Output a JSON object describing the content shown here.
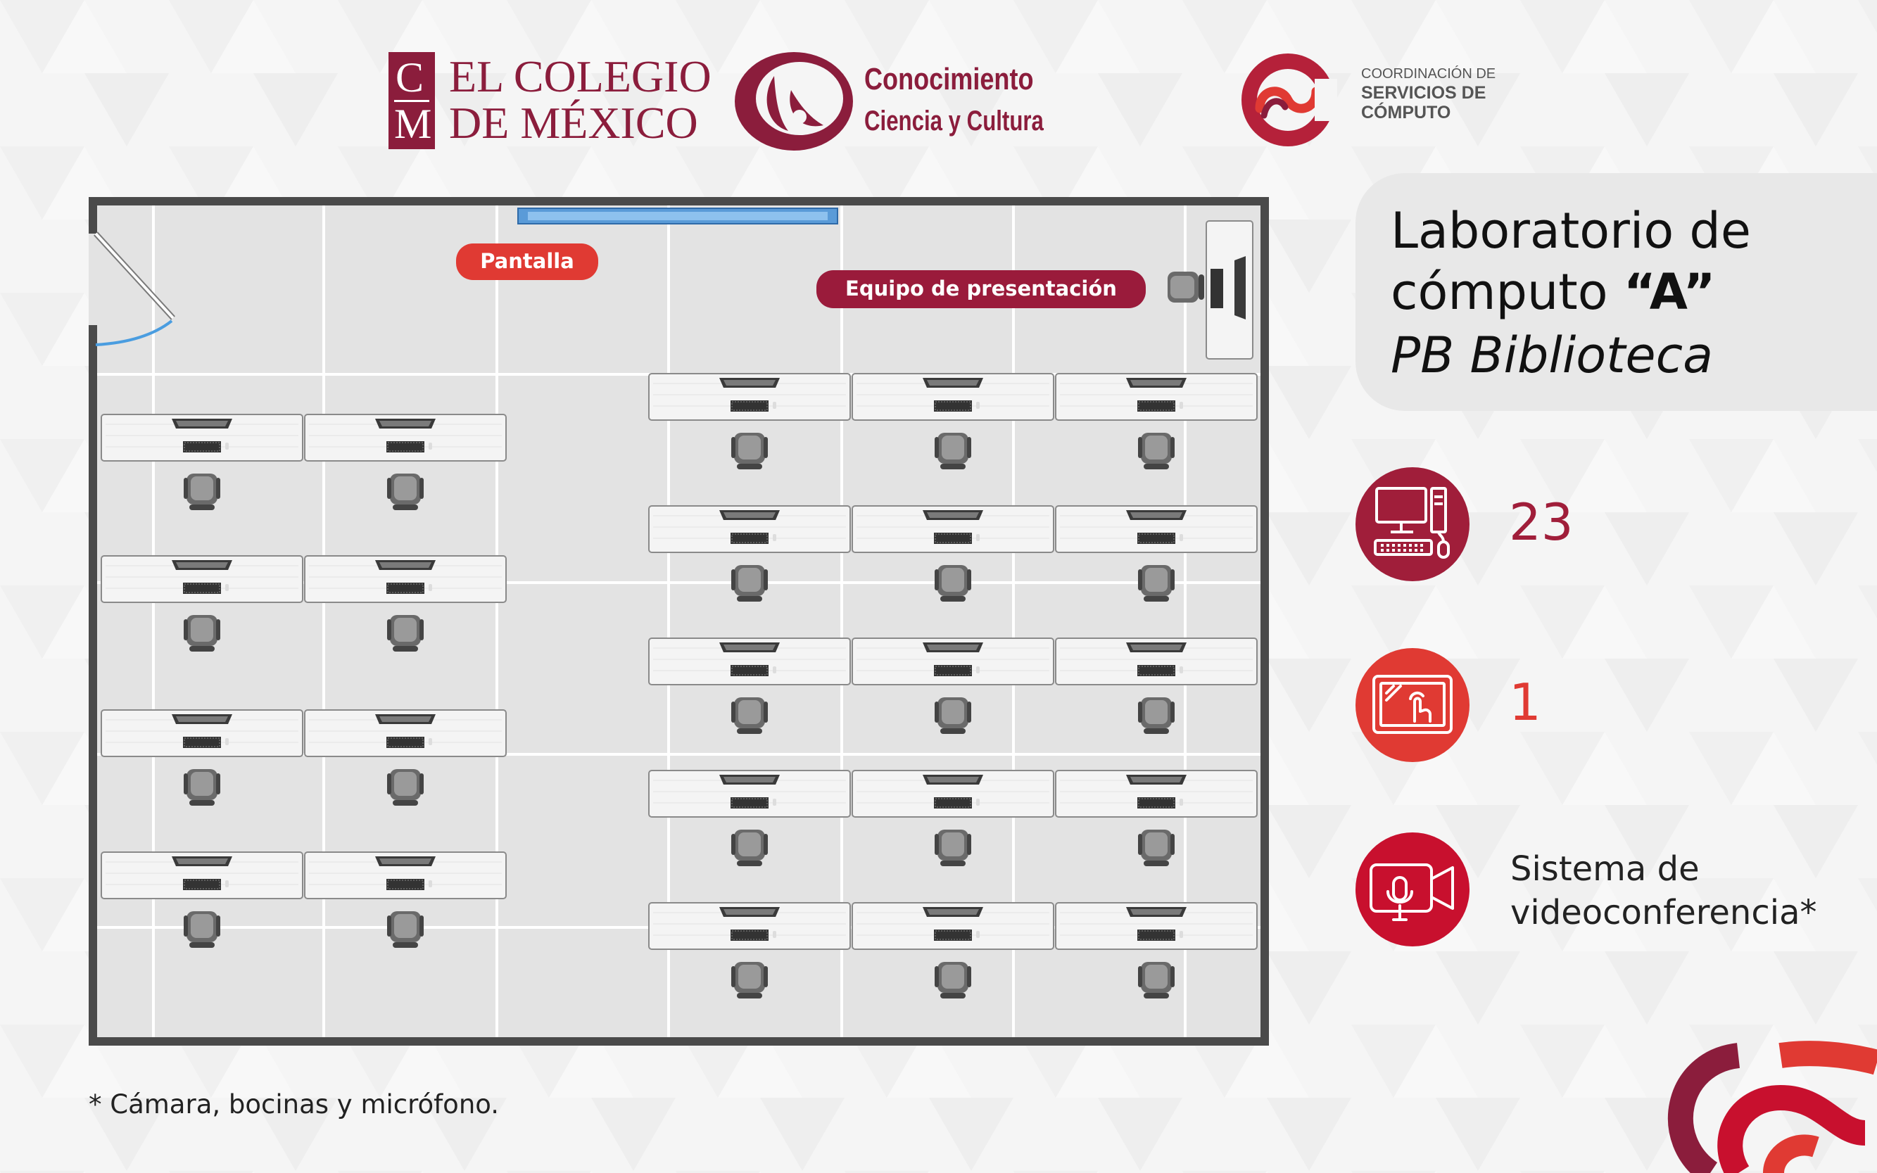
{
  "logos": {
    "colmex": {
      "monogram_top": "C",
      "monogram_bottom": "M",
      "line1": "EL COLEGIO",
      "line2": "DE MÉXICO"
    },
    "conocimiento": {
      "line1": "Conocimiento",
      "line2": "Ciencia y Cultura"
    },
    "scc": {
      "line1": "COORDINACIÓN DE",
      "line2": "SERVICIOS DE",
      "line3": "CÓMPUTO"
    }
  },
  "floor_plan": {
    "screen_label": "Pantalla",
    "presenter_label": "Equipo de presentación",
    "left_block": {
      "rows": 4,
      "columns": 2
    },
    "right_block": {
      "rows": 5,
      "columns": 3
    },
    "presenter_workstations": 1
  },
  "title": {
    "line1": "Laboratorio de",
    "line2_prefix": "cómputo ",
    "line2_bold": "“A”",
    "line3": "PB Biblioteca"
  },
  "features": [
    {
      "icon": "computer-icon",
      "value": "23",
      "color": "#a01e3a"
    },
    {
      "icon": "touchscreen-icon",
      "value": "1",
      "color": "#e03a33"
    },
    {
      "icon": "videoconference-icon",
      "line1": "Sistema de",
      "line2": "videoconferencia*",
      "color": "#c8102e"
    }
  ],
  "footnote": "*  Cámara, bocinas y micrófono.",
  "colors": {
    "brand_maroon": "#8b1d3c",
    "brand_red": "#e03a33",
    "label_maroon": "#9a1b3b",
    "floor_gray": "#e3e3e3",
    "wall_gray": "#4a4a4a"
  }
}
